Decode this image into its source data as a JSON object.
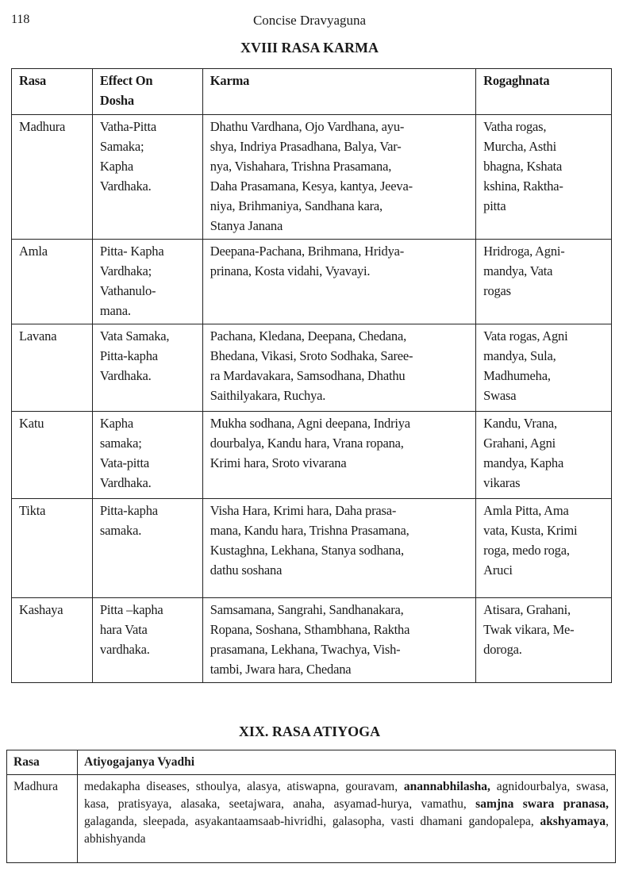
{
  "header": {
    "page_number": "118",
    "running_title": "Concise Dravyaguna"
  },
  "table1": {
    "title": "XVIII RASA KARMA",
    "columns": [
      "Rasa",
      "Effect On\nDosha",
      "Karma",
      "Rogaghnata"
    ],
    "rows": [
      [
        "Madhura",
        "Vatha-Pitta\nSamaka;\nKapha\nVardhaka.",
        "Dhathu Vardhana, Ojo Vardhana, ayu-\nshya, Indriya Prasadhana, Balya, Var-\nnya, Vishahara, Trishna Prasamana,\nDaha Prasamana, Kesya, kantya, Jeeva-\nniya, Brihmaniya, Sandhana kara,\nStanya Janana",
        "Vatha rogas,\nMurcha, Asthi\nbhagna, Kshata\nkshina, Raktha-\npitta"
      ],
      [
        "Amla",
        "Pitta- Kapha\nVardhaka;\nVathanulo-\nmana.",
        "Deepana-Pachana, Brihmana, Hridya-\nprinana, Kosta vidahi, Vyavayi.",
        "Hridroga, Agni-\nmandya, Vata\nrogas"
      ],
      [
        "Lavana",
        "Vata Samaka,\nPitta-kapha\nVardhaka.",
        "Pachana, Kledana, Deepana, Chedana,\nBhedana, Vikasi, Sroto Sodhaka, Saree-\nra Mardavakara, Samsodhana, Dhathu\nSaithilyakara, Ruchya.",
        "Vata rogas, Agni\nmandya, Sula,\nMadhumeha,\nSwasa"
      ],
      [
        "Katu",
        "Kapha\nsamaka;\nVata-pitta\nVardhaka.",
        "Mukha sodhana, Agni deepana, Indriya\ndourbalya, Kandu hara, Vrana ropana,\nKrimi hara, Sroto vivarana",
        "Kandu, Vrana,\nGrahani, Agni\nmandya, Kapha\nvikaras"
      ],
      [
        "Tikta",
        "Pitta-kapha\nsamaka.",
        "Visha Hara, Krimi hara, Daha prasa-\nmana, Kandu hara, Trishna Prasamana,\nKustaghna, Lekhana, Stanya sodhana,\ndathu soshana",
        "Amla Pitta, Ama\nvata, Kusta, Krimi\nroga, medo roga,\nAruci"
      ],
      [
        "Kashaya",
        "Pitta –kapha\nhara Vata\nvardhaka.",
        "Samsamana, Sangrahi, Sandhanakara,\nRopana, Soshana, Sthambhana, Raktha\nprasamana, Lekhana, Twachya, Vish-\ntambi, Jwara hara, Chedana",
        "Atisara, Grahani,\nTwak vikara, Me-\ndoroga."
      ]
    ]
  },
  "table2": {
    "title": "XIX. RASA ATIYOGA",
    "columns": [
      "Rasa",
      "Atiyogajanya Vyadhi"
    ],
    "rows": [
      {
        "rasa": "Madhura",
        "segments": [
          {
            "text": "medakapha diseases, sthoulya, alasya, atiswapna, gouravam, ",
            "bold": false
          },
          {
            "text": "anannabhilasha,",
            "bold": true
          },
          {
            "text": " agnidourbalya, swasa, kasa, pratisyaya, alasaka, seetajwara, anaha, asyamad-hurya, vamathu, ",
            "bold": false
          },
          {
            "text": "samjna swara pranasa,",
            "bold": true
          },
          {
            "text": " galaganda, sleepada, asyakantaamsaab-hivridhi, galasopha, vasti dhamani gandopalepa, ",
            "bold": false
          },
          {
            "text": "akshyamaya",
            "bold": true
          },
          {
            "text": ", abhishyanda",
            "bold": false
          }
        ]
      }
    ]
  }
}
